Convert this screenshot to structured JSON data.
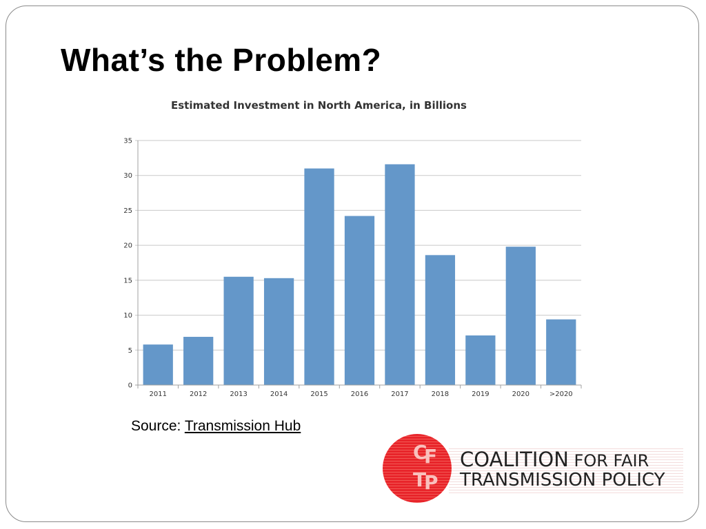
{
  "slide": {
    "title": "What’s the Problem?",
    "source_prefix": "Source: ",
    "source_link": "Transmission Hub"
  },
  "logo": {
    "monogram": [
      "C",
      "F",
      "T",
      "P"
    ],
    "line1_big": "COALITION",
    "line1_small": " FOR FAIR",
    "line2": "TRANSMISSION POLICY"
  },
  "colors": {
    "bar": "#6497c9",
    "grid": "#c8c8c8",
    "axis": "#a0a0a0",
    "logo_red": "#e8242a"
  },
  "chart_data": {
    "type": "bar",
    "title": "Estimated Investment in North America, in Billions",
    "xlabel": "",
    "ylabel": "",
    "categories": [
      "2011",
      "2012",
      "2013",
      "2014",
      "2015",
      "2016",
      "2017",
      "2018",
      "2019",
      "2020",
      ">2020"
    ],
    "values": [
      5.8,
      6.9,
      15.5,
      15.3,
      31.0,
      24.2,
      31.6,
      18.6,
      7.1,
      19.8,
      9.4
    ],
    "ylim": [
      0,
      35
    ],
    "yticks": [
      0,
      5,
      10,
      15,
      20,
      25,
      30,
      35
    ],
    "grid": true,
    "legend": "none"
  }
}
